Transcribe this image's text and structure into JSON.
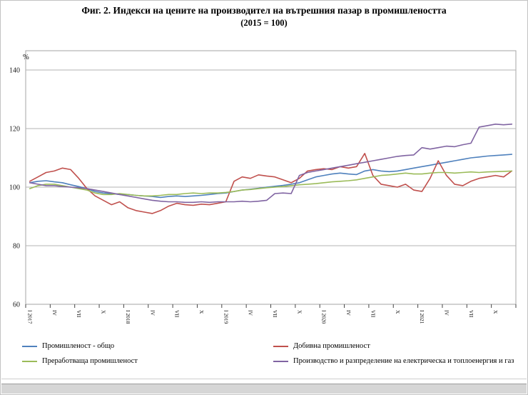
{
  "title": {
    "line1": "Фиг. 2. Индекси на цените на производител на вътрешния пазар в промишлеността",
    "line2": "(2015 = 100)"
  },
  "chart_data": {
    "type": "line",
    "unit_label": "%",
    "ylim": [
      60,
      140
    ],
    "yticks": [
      60,
      80,
      100,
      120,
      140
    ],
    "grid": true,
    "legend_position": "bottom",
    "x_period": "monthly, Jan 2017 - Dec 2021",
    "x_tick_labels": [
      "I 2017",
      "IV",
      "VII",
      "X",
      "I 2018",
      "IV",
      "VII",
      "X",
      "I 2019",
      "IV",
      "VII",
      "X",
      "I 2020",
      "IV",
      "VII",
      "X",
      "I 2021",
      "IV",
      "VII",
      "X"
    ],
    "series": [
      {
        "name": "Промишленост - общо",
        "color": "#4f81bd",
        "values": [
          101.5,
          102,
          102.2,
          101.8,
          101.5,
          100.8,
          100.2,
          99.5,
          98.5,
          98,
          97.8,
          97.5,
          97.5,
          97.2,
          97,
          96.8,
          96.5,
          96.8,
          97,
          96.8,
          97,
          97.2,
          97.5,
          97.8,
          98,
          98.5,
          99,
          99.3,
          99.6,
          100,
          100.3,
          100.6,
          101,
          101.5,
          102.5,
          103.5,
          104,
          104.5,
          104.8,
          104.5,
          104.3,
          105.5,
          106,
          105.5,
          105.3,
          105.5,
          106,
          106.5,
          107,
          107.5,
          108,
          108.5,
          109,
          109.5,
          110,
          110.3,
          110.6,
          110.8,
          111,
          111.2
        ]
      },
      {
        "name": "Добивна промишленост",
        "color": "#c0504d",
        "values": [
          102,
          103.5,
          105,
          105.5,
          106.5,
          106,
          103,
          99.5,
          97,
          95.5,
          94,
          95,
          93,
          92,
          91.5,
          91,
          92,
          93.5,
          94.5,
          94,
          93.8,
          94.2,
          94,
          94.5,
          95,
          102,
          103.5,
          103,
          104.2,
          103.8,
          103.5,
          102.5,
          101.5,
          103,
          105.5,
          106,
          106.3,
          106,
          107,
          106.5,
          107,
          111.5,
          104,
          101,
          100.5,
          100,
          101,
          99,
          98.5,
          103,
          109,
          104,
          101,
          100.5,
          102,
          103,
          103.5,
          104,
          103.5,
          105.5
        ]
      },
      {
        "name": "Преработваща промишленост",
        "color": "#9bbb59",
        "values": [
          99.5,
          100.5,
          101,
          101,
          100.5,
          100,
          99.5,
          99,
          98,
          97.5,
          97.5,
          97.8,
          97.5,
          97.2,
          97,
          97,
          97.2,
          97.5,
          97.5,
          97.8,
          98,
          97.8,
          98,
          98,
          98.2,
          98.5,
          99,
          99.2,
          99.5,
          99.8,
          100,
          100.2,
          100.5,
          100.8,
          101,
          101.2,
          101.5,
          101.8,
          102,
          102.2,
          102.5,
          103,
          103.5,
          104,
          104.2,
          104.5,
          104.8,
          104.5,
          104.5,
          104.8,
          105,
          105,
          104.8,
          105,
          105.2,
          105,
          105.2,
          105.3,
          105.4,
          105.5
        ]
      },
      {
        "name": "Производство и разпределение на електрическа и топлоенергия и газ",
        "color": "#8064a2",
        "values": [
          101.5,
          101,
          100.5,
          100.5,
          100.2,
          100,
          99.8,
          99.5,
          99,
          98.5,
          98,
          97.5,
          97,
          96.5,
          96,
          95.5,
          95.2,
          95,
          95,
          94.8,
          94.8,
          95,
          94.8,
          95,
          95,
          95,
          95.2,
          95,
          95.2,
          95.5,
          97.8,
          98,
          97.8,
          104,
          105,
          105.5,
          106,
          106.5,
          107,
          107.5,
          108,
          108.5,
          109,
          109.5,
          110,
          110.5,
          110.8,
          111,
          113.5,
          113,
          113.5,
          114,
          113.8,
          114.5,
          115,
          120.5,
          121,
          121.5,
          121.3,
          121.5
        ]
      }
    ]
  }
}
